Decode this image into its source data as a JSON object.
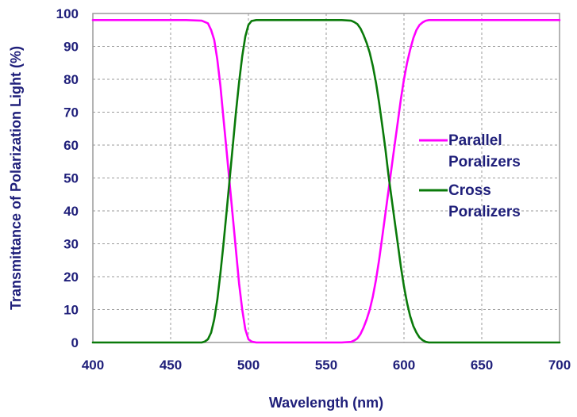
{
  "chart_data": {
    "type": "line",
    "title": "",
    "xlabel": "Wavelength (nm)",
    "ylabel": "Transmittance of Polarization Light (%)",
    "xlim": [
      400,
      700
    ],
    "ylim": [
      0,
      100
    ],
    "x_ticks": [
      400,
      450,
      500,
      550,
      600,
      650,
      700
    ],
    "y_ticks": [
      0,
      10,
      20,
      30,
      40,
      50,
      60,
      70,
      80,
      90,
      100
    ],
    "grid": true,
    "legend_position": "right",
    "series": [
      {
        "name_lines": [
          "Parallel",
          "Poralizers"
        ],
        "color": "#ff00ff",
        "x": [
          400,
          420,
          440,
          460,
          470,
          474,
          476,
          478,
          480,
          482,
          484,
          486,
          488,
          490,
          492,
          494,
          496,
          498,
          500,
          502,
          505,
          520,
          540,
          560,
          566,
          568,
          570,
          572,
          574,
          576,
          578,
          580,
          582,
          584,
          586,
          588,
          590,
          592,
          594,
          596,
          598,
          600,
          602,
          604,
          606,
          608,
          610,
          612,
          614,
          616,
          620,
          640,
          660,
          680,
          700
        ],
        "y": [
          98,
          98,
          98,
          98,
          97.8,
          97,
          95,
          92,
          86,
          78,
          68,
          58,
          48,
          38,
          28,
          18,
          10,
          4,
          1,
          0.3,
          0,
          0,
          0,
          0,
          0.2,
          0.6,
          1.2,
          2.5,
          4.5,
          7,
          10,
          14,
          19,
          25,
          32,
          39,
          46,
          53,
          60,
          67,
          74,
          80,
          85,
          89,
          92.5,
          95,
          96.5,
          97.3,
          97.8,
          98,
          98,
          98,
          98,
          98,
          98
        ]
      },
      {
        "name_lines": [
          "Cross",
          "Poralizers"
        ],
        "color": "#0a7a0a",
        "x": [
          400,
          420,
          440,
          460,
          470,
          472,
          474,
          476,
          478,
          480,
          482,
          484,
          486,
          488,
          490,
          492,
          494,
          496,
          498,
          500,
          502,
          505,
          520,
          540,
          560,
          566,
          568,
          570,
          572,
          574,
          576,
          578,
          580,
          582,
          584,
          586,
          588,
          590,
          592,
          594,
          596,
          598,
          600,
          602,
          604,
          606,
          608,
          610,
          612,
          614,
          616,
          620,
          640,
          660,
          680,
          700
        ],
        "y": [
          0,
          0,
          0,
          0,
          0,
          0.3,
          1,
          3,
          7,
          13,
          21,
          30,
          40,
          50,
          60,
          70,
          79,
          87,
          93,
          96.5,
          97.7,
          98,
          98,
          98,
          98,
          97.8,
          97.4,
          96.8,
          95.5,
          93.5,
          91,
          88,
          84,
          79,
          73,
          66,
          59,
          51,
          44,
          37,
          30,
          23,
          17,
          12,
          8,
          5,
          3,
          1.5,
          0.7,
          0.2,
          0,
          0,
          0,
          0,
          0,
          0
        ]
      }
    ]
  }
}
